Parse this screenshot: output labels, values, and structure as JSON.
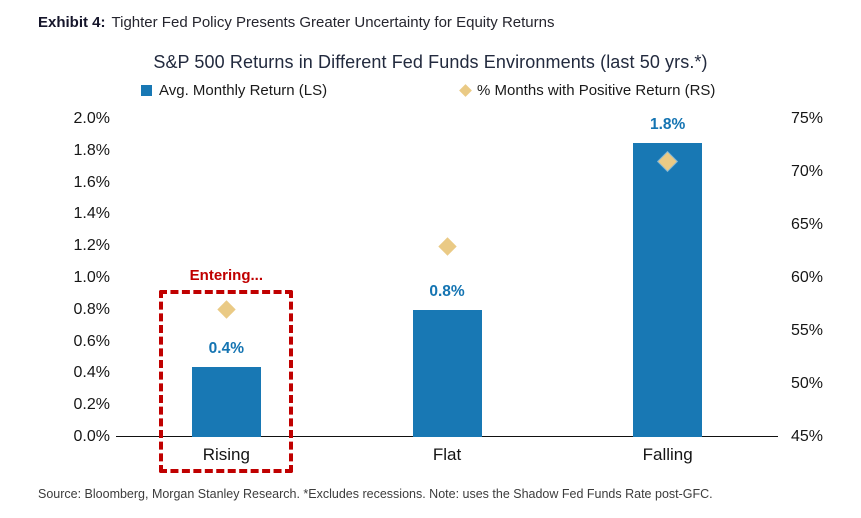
{
  "exhibit": {
    "label": "Exhibit 4:",
    "title": "Tighter Fed Policy Presents Greater Uncertainty for Equity Returns"
  },
  "footer": {
    "source": "Source: Bloomberg, Morgan Stanley Research. *Excludes recessions. Note: uses the Shadow Fed Funds Rate post-GFC."
  },
  "colors": {
    "bar_blue": "#1878B4",
    "label_blue": "#1474B2",
    "diamond_tan": "#EACA85",
    "annotation_red": "#C00000",
    "title_navy": "#222A3E"
  },
  "chart_data": {
    "type": "bar",
    "title": "S&P 500 Returns in Different Fed Funds Environments (last 50 yrs.*)",
    "categories": [
      "Rising",
      "Flat",
      "Falling"
    ],
    "series": [
      {
        "name": "Avg. Monthly Return (LS)",
        "type": "bar",
        "axis": "left",
        "marker": "square",
        "color": "#1878B4",
        "values": [
          0.44,
          0.8,
          1.85
        ],
        "data_labels": [
          "0.4%",
          "0.8%",
          "1.8%"
        ]
      },
      {
        "name": "% Months with Positive Return (RS)",
        "type": "scatter",
        "axis": "right",
        "marker": "diamond",
        "color": "#EACA85",
        "values": [
          57,
          63,
          71
        ]
      }
    ],
    "left_axis": {
      "min": 0.0,
      "max": 2.0,
      "tick_values": [
        2.0,
        1.8,
        1.6,
        1.4,
        1.2,
        1.0,
        0.8,
        0.6,
        0.4,
        0.2,
        0.0
      ],
      "tick_labels": [
        "2.0%",
        "1.8%",
        "1.6%",
        "1.4%",
        "1.2%",
        "1.0%",
        "0.8%",
        "0.6%",
        "0.4%",
        "0.2%",
        "0.0%"
      ]
    },
    "right_axis": {
      "min": 45,
      "max": 75,
      "tick_values": [
        75,
        70,
        65,
        60,
        55,
        50,
        45
      ],
      "tick_labels": [
        "75%",
        "70%",
        "65%",
        "60%",
        "55%",
        "50%",
        "45%"
      ]
    },
    "grid": false,
    "legend_position": "top",
    "annotation": {
      "text": "Entering...",
      "target_category": "Rising",
      "style": "dashed-box",
      "color": "#C00000"
    }
  }
}
